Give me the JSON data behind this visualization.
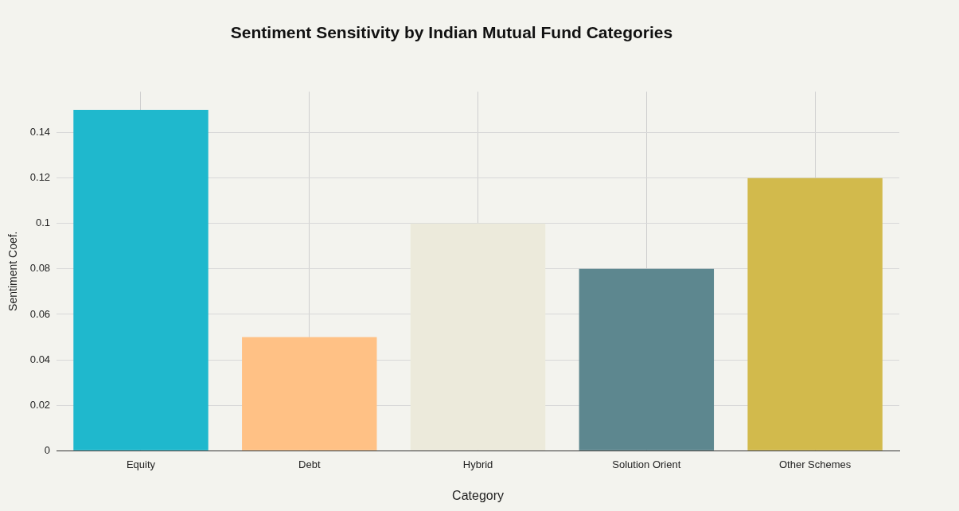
{
  "chart_data": {
    "type": "bar",
    "title": "Sentiment Sensitivity by Indian Mutual Fund Categories",
    "xlabel": "Category",
    "ylabel": "Sentiment Coef.",
    "categories": [
      "Equity",
      "Debt",
      "Hybrid",
      "Solution Orient",
      "Other Schemes"
    ],
    "values": [
      0.15,
      0.05,
      0.1,
      0.08,
      0.12
    ],
    "colors": [
      "#1fb8cd",
      "#ffc185",
      "#eceadb",
      "#5d878f",
      "#d2ba4c"
    ],
    "ylim": [
      0,
      0.158
    ],
    "yticks": [
      0,
      0.02,
      0.04,
      0.06,
      0.08,
      0.1,
      0.12,
      0.14
    ],
    "grid": true,
    "legend": false
  }
}
